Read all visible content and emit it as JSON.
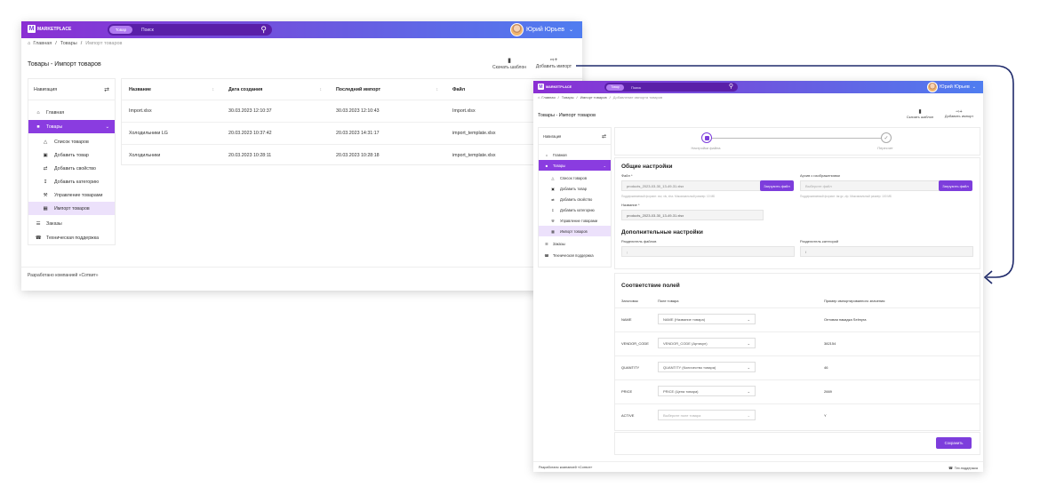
{
  "app": {
    "logo_text": "MARKETPLACE",
    "search_scope": "Товар",
    "search_placeholder": "Поиск",
    "user_name": "Юрий Юрьев"
  },
  "breadcrumbs": [
    "Главная",
    "Товары",
    "Импорт товаров"
  ],
  "page_title": "Товары - Импорт товаров",
  "actions": {
    "download_template": "Скачать шаблон",
    "add_import": "Добавить импорт"
  },
  "nav": {
    "title": "Навигация",
    "items": [
      {
        "label": "Главная",
        "icon": "home-icon"
      },
      {
        "label": "Товары",
        "icon": "box-icon"
      },
      {
        "label": "Список товаров",
        "icon": "list-icon"
      },
      {
        "label": "Добавить товар",
        "icon": "plus-box-icon"
      },
      {
        "label": "Добавить свойство",
        "icon": "arrows-icon"
      },
      {
        "label": "Добавить категорию",
        "icon": "tray-icon"
      },
      {
        "label": "Управление товарами",
        "icon": "wrench-icon"
      },
      {
        "label": "Импорт товаров",
        "icon": "import-icon"
      },
      {
        "label": "Заказы",
        "icon": "cart-icon"
      },
      {
        "label": "Техническая поддержка",
        "icon": "support-icon"
      }
    ]
  },
  "imports_table": {
    "columns": [
      "Название",
      "Дата создания",
      "Последний импорт",
      "Файл"
    ],
    "rows": [
      [
        "Import.xlsx",
        "30.03.2023 12:10:37",
        "30.03.2023 12:10:43",
        "Import.xlsx"
      ],
      [
        "Холодильники LG",
        "20.03.2023 10:37:42",
        "20.03.2023 14:31:17",
        "import_template.xlsx"
      ],
      [
        "Холодильники",
        "20.03.2023 10:28:11",
        "20.03.2023 10:28:18",
        "import_template.xlsx"
      ]
    ]
  },
  "footer": {
    "developed_by": "Разработано компанией «Сотвит»",
    "support": "Тех.поддержка"
  },
  "wizard": {
    "breadcrumb_extra": "Добавление импорта товаров",
    "steps": [
      "Настройки файла",
      "Пересчет"
    ],
    "general_title": "Общие настройки",
    "file_label": "Файл *",
    "file_value": "products_2023-03-30_13-49-31.xlsx",
    "upload_file": "Загрузить файл",
    "file_hint": "Поддерживаемый формат: csv, xls, xlsx. Максимальный размер: 10 МБ",
    "archive_label": "Архив с изображениями",
    "archive_placeholder": "Выберите файл",
    "upload_archive": "Загрузить файл",
    "archive_hint": "Поддерживаемый формат: tar.gz, zip. Максимальный размер: 100 МБ",
    "name_label": "Название *",
    "name_value": "products_2023-03-30_13-49-31.xlsx",
    "extra_title": "Дополнительные настройки",
    "field_sep_label": "Разделитель файлов",
    "field_sep_value": ";",
    "cat_sep_label": "Разделитель категорий",
    "cat_sep_value": "/",
    "mapping_title": "Соответствие полей",
    "mapping_columns": [
      "Заголовок",
      "Поле товара",
      "Пример импортированного значения"
    ],
    "mapping_rows": [
      {
        "header": "NAME",
        "field": "NAME (Название товара)",
        "example": "Оптовая накидка Selmyra"
      },
      {
        "header": "VENDOR_CODE",
        "field": "VENDOR_CODE (Артикул)",
        "example": "382154"
      },
      {
        "header": "QUANTITY",
        "field": "QUANTITY (Количество товара)",
        "example": "46"
      },
      {
        "header": "PRICE",
        "field": "PRICE (Цена товара)",
        "example": "2669"
      },
      {
        "header": "ACTIVE",
        "field": "Выберите поле товара",
        "example": "Y"
      }
    ],
    "save": "Сохранить"
  },
  "colors": {
    "accent": "#8a3ce0",
    "gradient_start": "#8a2fd3",
    "gradient_end": "#4f7df0",
    "arrow": "#1f2a6b"
  }
}
